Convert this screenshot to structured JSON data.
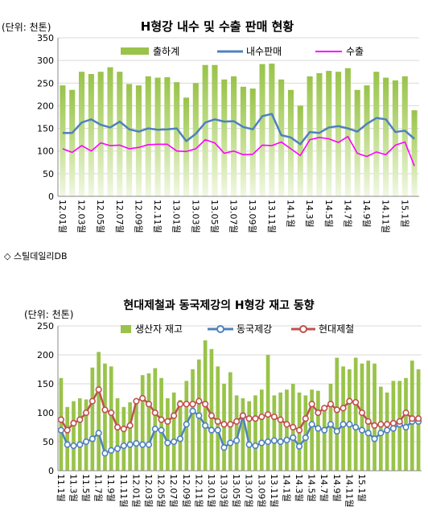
{
  "source_note": "◇ 스틸데일리DB",
  "colors": {
    "bar_green": "#99c34a",
    "bar_light": "#d3e7ac",
    "domestic_blue": "#4f81bd",
    "export_magenta": "#ff00ff",
    "stock_red": "#c0504d",
    "grid": "#d9d9d9"
  },
  "chart_data": [
    {
      "type": "bar",
      "title": "H형강 내수 및 수출 판매 현황",
      "unit_label": "(단위: 천톤)",
      "ylim": [
        0,
        350
      ],
      "yticks": [
        0,
        50,
        100,
        150,
        200,
        250,
        300,
        350
      ],
      "grid": true,
      "legend_position": "top",
      "x_tick_labels": [
        "12.01월",
        "12.03월",
        "12.05월",
        "12.07월",
        "12.09월",
        "12.11월",
        "13.01월",
        "13.03월",
        "13.05월",
        "13.07월",
        "13.09월",
        "13.11월",
        "14.1월",
        "14.3월",
        "14.5월",
        "14.7월",
        "14.9월",
        "14.11월",
        "15.1월"
      ],
      "series": [
        {
          "name": "출하계",
          "kind": "bar",
          "values": [
            245,
            235,
            275,
            270,
            275,
            285,
            275,
            248,
            245,
            265,
            262,
            263,
            252,
            218,
            250,
            290,
            290,
            258,
            265,
            242,
            238,
            292,
            293,
            258,
            235,
            200,
            265,
            272,
            277,
            275,
            283,
            235,
            245,
            275,
            262,
            256,
            265,
            190
          ]
        },
        {
          "name": "내수판매",
          "kind": "line",
          "values": [
            140,
            140,
            163,
            170,
            158,
            152,
            165,
            148,
            143,
            150,
            147,
            148,
            150,
            122,
            138,
            163,
            170,
            165,
            166,
            153,
            148,
            177,
            182,
            135,
            130,
            115,
            142,
            140,
            152,
            155,
            150,
            143,
            160,
            173,
            170,
            142,
            145,
            127
          ]
        },
        {
          "name": "수출",
          "kind": "line",
          "values": [
            105,
            97,
            112,
            100,
            118,
            112,
            113,
            105,
            108,
            114,
            115,
            115,
            100,
            99,
            105,
            125,
            118,
            95,
            100,
            92,
            93,
            113,
            112,
            120,
            105,
            90,
            125,
            130,
            127,
            119,
            132,
            95,
            88,
            98,
            92,
            113,
            120,
            67
          ]
        }
      ]
    },
    {
      "type": "bar",
      "title": "현대제철과 동국제강의 H형강 재고 동향",
      "unit_label": "(단위: 천톤)",
      "ylim": [
        0,
        250
      ],
      "yticks": [
        0,
        50,
        100,
        150,
        200,
        250
      ],
      "grid": true,
      "legend_position": "top",
      "x_tick_labels": [
        "11.1월",
        "11.3월",
        "11.5월",
        "11.7월",
        "11.9월",
        "11.11월",
        "12.01월",
        "12.03월",
        "12.05월",
        "12.07월",
        "12.09월",
        "12.11월",
        "13.01월",
        "13.03월",
        "13.05월",
        "13.07월",
        "13.09월",
        "13.11월",
        "14.1월",
        "14.3월",
        "14.5월",
        "14.7월",
        "14.9월",
        "14.11월",
        "15.1월"
      ],
      "series": [
        {
          "name": "생산자 재고",
          "kind": "bar",
          "values": [
            160,
            110,
            120,
            125,
            123,
            178,
            205,
            185,
            180,
            125,
            110,
            118,
            120,
            165,
            168,
            177,
            160,
            125,
            135,
            122,
            155,
            175,
            192,
            225,
            210,
            180,
            150,
            170,
            130,
            125,
            120,
            130,
            140,
            200,
            130,
            135,
            140,
            150,
            135,
            130,
            140,
            138,
            110,
            150,
            195,
            180,
            175,
            195,
            185,
            190,
            185,
            145,
            135,
            155,
            155,
            160,
            190,
            175
          ]
        },
        {
          "name": "동국제강",
          "kind": "line",
          "values": [
            70,
            45,
            43,
            45,
            50,
            55,
            65,
            30,
            35,
            38,
            43,
            45,
            47,
            45,
            45,
            72,
            70,
            48,
            50,
            55,
            80,
            103,
            95,
            78,
            70,
            70,
            40,
            48,
            52,
            95,
            45,
            43,
            48,
            50,
            52,
            50,
            53,
            57,
            42,
            57,
            80,
            73,
            70,
            80,
            68,
            80,
            80,
            75,
            70,
            65,
            55,
            65,
            70,
            73,
            80,
            75,
            85,
            85
          ]
        },
        {
          "name": "현대제철",
          "kind": "line",
          "values": [
            88,
            70,
            82,
            88,
            100,
            120,
            140,
            105,
            100,
            75,
            72,
            78,
            120,
            125,
            115,
            100,
            88,
            85,
            95,
            115,
            115,
            115,
            120,
            115,
            95,
            85,
            80,
            80,
            85,
            95,
            90,
            90,
            93,
            97,
            93,
            88,
            80,
            75,
            70,
            90,
            115,
            100,
            108,
            115,
            105,
            108,
            120,
            118,
            100,
            85,
            78,
            80,
            80,
            82,
            85,
            100,
            90,
            90
          ]
        }
      ]
    }
  ]
}
